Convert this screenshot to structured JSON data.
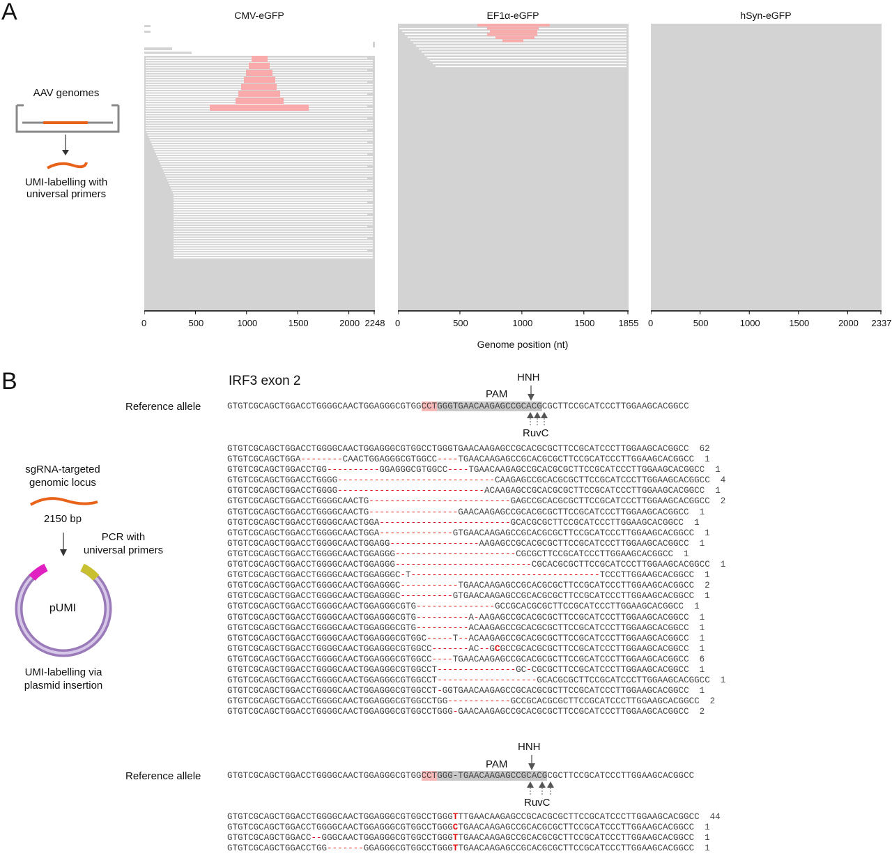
{
  "panel_a": {
    "letter": "A",
    "schematic": {
      "title": "AAV genomes",
      "caption": "UMI-labelling with\nuniversal primers"
    },
    "x_axis_label": "Genome position (nt)",
    "plots": [
      {
        "title": "CMV-eGFP",
        "ticks": [
          "0",
          "500",
          "1000",
          "1500",
          "2000",
          "2248"
        ],
        "max": 2248
      },
      {
        "title": "EF1α-eGFP",
        "ticks": [
          "0",
          "500",
          "1000",
          "1500",
          "1855"
        ],
        "max": 1855
      },
      {
        "title": "hSyn-eGFP",
        "ticks": [
          "0",
          "500",
          "1000",
          "1500",
          "2000",
          "2337"
        ],
        "max": 2337
      }
    ]
  },
  "panel_b": {
    "letter": "B",
    "locus_title": "IRF3 exon 2",
    "schematic": {
      "locus_label": "sgRNA-targeted\ngenomic locus",
      "size_label": "2150 bp",
      "pcr_label": "PCR with\nuniversal primers",
      "plasmid_label": "pUMI",
      "caption": "UMI-labelling via\nplasmid insertion"
    },
    "ref_label": "Reference allele",
    "hnh": "HNH",
    "pam": "PAM",
    "ruvc": "RuvC",
    "ref1": {
      "pre": "GTGTCGCAGCTGGACCTGGGGCAACTGGAGGGCGTGG",
      "pam": "CCT",
      "proto": "GGGTGAACAAGAGCCGCACG",
      "post": "CGCTTCCGCATCCCTTGGAAGCACGGCC"
    },
    "ref2": {
      "pre": "GTGTCGCAGCTGGACCTGGGGCAACTGGAGGGCGTGG",
      "pam": "CCT",
      "proto": "GGG-TGAACAAGAGCCGCACG",
      "post": "CGCTTCCGCATCCCTTGGAAGCACGGCC"
    },
    "alleles1": [
      {
        "seq": "GTGTCGCAGCTGGACCTGGGGCAACTGGAGGGCGTGGCCTGGGTGAACAAGAGCCGCACGCGCTTCCGCATCCCTTGGAAGCACGGCC",
        "count": "62"
      },
      {
        "seq": "GTGTCGCAGCTGGA--------CAACTGGAGGGCGTGGCC----TGAACAAGAGCCGCACGCGCTTCCGCATCCCTTGGAAGCACGGCC",
        "count": "1"
      },
      {
        "seq": "GTGTCGCAGCTGGACCTGG----------GGAGGGCGTGGCC----TGAACAAGAGCCGCACGCGCTTCCGCATCCCTTGGAAGCACGGCC",
        "count": "1"
      },
      {
        "seq": "GTGTCGCAGCTGGACCTGGGG------------------------------CAAGAGCCGCACGCGCTTCCGCATCCCTTGGAAGCACGGCC",
        "count": "4"
      },
      {
        "seq": "GTGTCGCAGCTGGACCTGGGG----------------------------ACAAGAGCCGCACGCGCTTCCGCATCCCTTGGAAGCACGGCC",
        "count": "1"
      },
      {
        "seq": "GTGTCGCAGCTGGACCTGGGGCAACTG---------------------------GAGCCGCACGCGCTTCCGCATCCCTTGGAAGCACGGCC",
        "count": "2"
      },
      {
        "seq": "GTGTCGCAGCTGGACCTGGGGCAACTG-----------------GAACAAGAGCCGCACGCGCTTCCGCATCCCTTGGAAGCACGGCC",
        "count": "1"
      },
      {
        "seq": "GTGTCGCAGCTGGACCTGGGGCAACTGGA-------------------------GCACGCGCTTCCGCATCCCTTGGAAGCACGGCC",
        "count": "1"
      },
      {
        "seq": "GTGTCGCAGCTGGACCTGGGGCAACTGGA--------------GTGAACAAGAGCCGCACGCGCTTCCGCATCCCTTGGAAGCACGGCC",
        "count": "1"
      },
      {
        "seq": "GTGTCGCAGCTGGACCTGGGGCAACTGGAGG-----------------AAGAGCCGCACGCGCTTCCGCATCCCTTGGAAGCACGGCC",
        "count": "1"
      },
      {
        "seq": "GTGTCGCAGCTGGACCTGGGGCAACTGGAGGG-----------------------CGCGCTTCCGCATCCCTTGGAAGCACGGCC",
        "count": "1"
      },
      {
        "seq": "GTGTCGCAGCTGGACCTGGGGCAACTGGAGGG--------------------------CGCACGCGCTTCCGCATCCCTTGGAAGCACGGCC",
        "count": "1"
      },
      {
        "seq": "GTGTCGCAGCTGGACCTGGGGCAACTGGAGGGC-T------------------------------------TCCCTTGGAAGCACGGCC",
        "count": "1"
      },
      {
        "seq": "GTGTCGCAGCTGGACCTGGGGCAACTGGAGGGC-----------TGAACAAGAGCCGCACGCGCTTCCGCATCCCTTGGAAGCACGGCC",
        "count": "2"
      },
      {
        "seq": "GTGTCGCAGCTGGACCTGGGGCAACTGGAGGGC----------GTGAACAAGAGCCGCACGCGCTTCCGCATCCCTTGGAAGCACGGCC",
        "count": "1"
      },
      {
        "seq": "GTGTCGCAGCTGGACCTGGGGCAACTGGAGGGCGTG---------------GCCGCACGCGCTTCCGCATCCCTTGGAAGCACGGCC",
        "count": "1"
      },
      {
        "seq": "GTGTCGCAGCTGGACCTGGGGCAACTGGAGGGCGTG----------A-AAGAGCCGCACGCGCTTCCGCATCCCTTGGAAGCACGGCC",
        "count": "1"
      },
      {
        "seq": "GTGTCGCAGCTGGACCTGGGGCAACTGGAGGGCGTG----------ACAAGAGCCGCACGCGCTTCCGCATCCCTTGGAAGCACGGCC",
        "count": "1"
      },
      {
        "seq": "GTGTCGCAGCTGGACCTGGGGCAACTGGAGGGCGTGGC-----T--ACAAGAGCCGCACGCGCTTCCGCATCCCTTGGAAGCACGGCC",
        "count": "1"
      },
      {
        "seq": "GTGTCGCAGCTGGACCTGGGGCAACTGGAGGGCGTGGCC-------AC--G!CGCCGCACGCGCTTCCGCATCCCTTGGAAGCACGGCC",
        "count": "1"
      },
      {
        "seq": "GTGTCGCAGCTGGACCTGGGGCAACTGGAGGGCGTGGCC----TGAACAAGAGCCGCACGCGCTTCCGCATCCCTTGGAAGCACGGCC",
        "count": "6"
      },
      {
        "seq": "GTGTCGCAGCTGGACCTGGGGCAACTGGAGGGCGTGGCCT---------------GC-CGCGCTTCCGCATCCCTTGGAAGCACGGCC",
        "count": "1"
      },
      {
        "seq": "GTGTCGCAGCTGGACCTGGGGCAACTGGAGGGCGTGGCCT-------------------GCACGCGCTTCCGCATCCCTTGGAAGCACGGCC",
        "count": "1"
      },
      {
        "seq": "GTGTCGCAGCTGGACCTGGGGCAACTGGAGGGCGTGGCCT-GGTGAACAAGAGCCGCACGCGCTTCCGCATCCCTTGGAAGCACGGCC",
        "count": "1"
      },
      {
        "seq": "GTGTCGCAGCTGGACCTGGGGCAACTGGAGGGCGTGGCCTGG------------GCCGCACGCGCTTCCGCATCCCTTGGAAGCACGGCC",
        "count": "2"
      },
      {
        "seq": "GTGTCGCAGCTGGACCTGGGGCAACTGGAGGGCGTGGCCTGGG-GAACAAGAGCCGCACGCGCTTCCGCATCCCTTGGAAGCACGGCC",
        "count": "2"
      }
    ],
    "alleles2": [
      {
        "seq": "GTGTCGCAGCTGGACCTGGGGCAACTGGAGGGCGTGGCCTGGG!TTGAACAAGAGCCGCACGCGCTTCCGCATCCCTTGGAAGCACGGCC",
        "ins": "T",
        "count": "44"
      },
      {
        "seq": "GTGTCGCAGCTGGACCTGGGGCAACTGGAGGGCGTGGCCTGGG!TGAACAAGAGCCGCACGCGCTTCCGCATCCCTTGGAAGCACGGCC",
        "ins": "C",
        "count": "1"
      },
      {
        "seq": "GTGTCGCAGCTGGACC--GGGCAACTGGAGGGCGTGGCCTGGG!TGAACAAGAGCCGCACGCGCTTCCGCATCCCTTGGAAGCACGGCC",
        "ins": "T",
        "count": "1"
      },
      {
        "seq": "GTGTCGCAGCTGGACCTGG-------GGAGGGCGTGGCCTGGG!TGAACAAGAGCCGCACGCGCTTCCGCATCCCTTGGAAGCACGGCC",
        "ins": "T",
        "count": "1"
      }
    ]
  },
  "colors": {
    "read": "#d3d3d3",
    "gap": "#ffffff",
    "hl": "#f9aaaa",
    "orange": "#e8621a",
    "purple": "#a88bc4"
  }
}
